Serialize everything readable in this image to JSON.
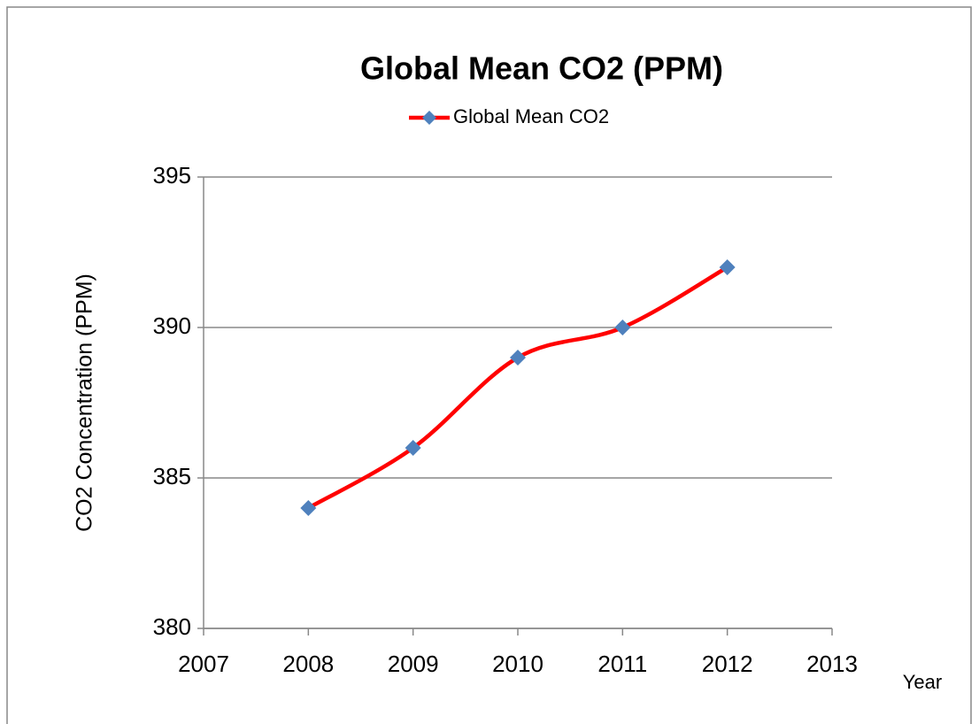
{
  "chart_data": {
    "type": "line",
    "title": "Global Mean CO2 (PPM)",
    "x_label": "Year",
    "y_label": "CO2 Concentration (PPM)",
    "x": [
      2008,
      2009,
      2010,
      2011,
      2012
    ],
    "series": [
      {
        "name": "Global Mean CO2",
        "color": "#ff0000",
        "marker_color": "#4f81bd",
        "values": [
          384,
          386,
          389,
          390,
          392
        ]
      }
    ],
    "xlim": [
      2007,
      2013
    ],
    "xticks": [
      2007,
      2008,
      2009,
      2010,
      2011,
      2012,
      2013
    ],
    "ylim": [
      380,
      395
    ],
    "yticks": [
      380,
      385,
      390,
      395
    ],
    "grid": true,
    "smooth": true,
    "legend": "top"
  }
}
